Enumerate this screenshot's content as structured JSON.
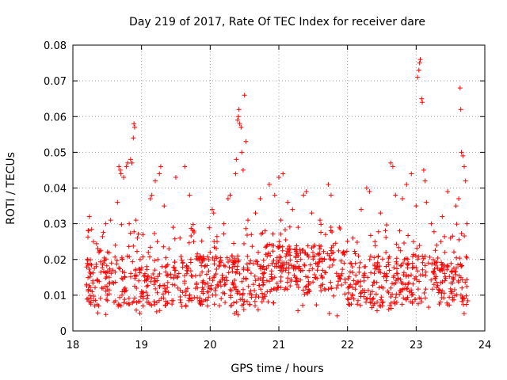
{
  "chart_data": {
    "type": "scatter",
    "title": "Day 219 of 2017, Rate Of TEC Index for receiver dare",
    "xlabel": "GPS time / hours",
    "ylabel": "ROTI / TECUs",
    "xlim": [
      18,
      24
    ],
    "ylim": [
      0,
      0.08
    ],
    "xticks": [
      18,
      19,
      20,
      21,
      22,
      23,
      24
    ],
    "xtick_labels": [
      "18",
      "19",
      "20",
      "21",
      "22",
      "23",
      "24"
    ],
    "yticks": [
      0,
      0.01,
      0.02,
      0.03,
      0.04,
      0.05,
      0.06,
      0.07,
      0.08
    ],
    "ytick_labels": [
      "0",
      "0.01",
      "0.02",
      "0.03",
      "0.04",
      "0.05",
      "0.06",
      "0.07",
      "0.08"
    ],
    "grid": true,
    "marker": "+",
    "series": [
      {
        "name": "ROTI",
        "color": "#ff0000",
        "points": [
          [
            18.2,
            0.013
          ],
          [
            18.21,
            0.02
          ],
          [
            18.22,
            0.009
          ],
          [
            18.23,
            0.028
          ],
          [
            18.24,
            0.032
          ],
          [
            18.26,
            0.016
          ],
          [
            18.28,
            0.011
          ],
          [
            18.3,
            0.025
          ],
          [
            18.32,
            0.007
          ],
          [
            18.34,
            0.018
          ],
          [
            18.36,
            0.014
          ],
          [
            18.38,
            0.022
          ],
          [
            18.42,
            0.012
          ],
          [
            18.45,
            0.019
          ],
          [
            18.48,
            0.03
          ],
          [
            18.5,
            0.01
          ],
          [
            18.53,
            0.015
          ],
          [
            18.55,
            0.031
          ],
          [
            18.58,
            0.017
          ],
          [
            18.6,
            0.008
          ],
          [
            18.62,
            0.024
          ],
          [
            18.65,
            0.036
          ],
          [
            18.67,
            0.046
          ],
          [
            18.69,
            0.045
          ],
          [
            18.7,
            0.044
          ],
          [
            18.72,
            0.02
          ],
          [
            18.74,
            0.043
          ],
          [
            18.76,
            0.012
          ],
          [
            18.78,
            0.046
          ],
          [
            18.8,
            0.047
          ],
          [
            18.82,
            0.03
          ],
          [
            18.84,
            0.048
          ],
          [
            18.86,
            0.047
          ],
          [
            18.88,
            0.054
          ],
          [
            18.89,
            0.058
          ],
          [
            18.9,
            0.057
          ],
          [
            18.92,
            0.031
          ],
          [
            18.94,
            0.026
          ],
          [
            18.96,
            0.014
          ],
          [
            18.98,
            0.02
          ],
          [
            19.0,
            0.011
          ],
          [
            19.02,
            0.027
          ],
          [
            19.05,
            0.016
          ],
          [
            19.08,
            0.009
          ],
          [
            19.1,
            0.022
          ],
          [
            19.13,
            0.037
          ],
          [
            19.15,
            0.038
          ],
          [
            19.18,
            0.013
          ],
          [
            19.2,
            0.042
          ],
          [
            19.23,
            0.025
          ],
          [
            19.26,
            0.044
          ],
          [
            19.28,
            0.046
          ],
          [
            19.3,
            0.018
          ],
          [
            19.33,
            0.035
          ],
          [
            19.36,
            0.011
          ],
          [
            19.4,
            0.023
          ],
          [
            19.43,
            0.015
          ],
          [
            19.46,
            0.029
          ],
          [
            19.5,
            0.043
          ],
          [
            19.53,
            0.012
          ],
          [
            19.56,
            0.026
          ],
          [
            19.6,
            0.019
          ],
          [
            19.63,
            0.046
          ],
          [
            19.66,
            0.016
          ],
          [
            19.7,
            0.038
          ],
          [
            19.73,
            0.009
          ],
          [
            19.76,
            0.025
          ],
          [
            19.8,
            0.013
          ],
          [
            19.84,
            0.02
          ],
          [
            19.88,
            0.011
          ],
          [
            19.92,
            0.018
          ],
          [
            19.96,
            0.007
          ],
          [
            20.0,
            0.022
          ],
          [
            20.03,
            0.034
          ],
          [
            20.05,
            0.033
          ],
          [
            20.08,
            0.012
          ],
          [
            20.1,
            0.025
          ],
          [
            20.13,
            0.018
          ],
          [
            20.16,
            0.009
          ],
          [
            20.2,
            0.03
          ],
          [
            20.23,
            0.015
          ],
          [
            20.26,
            0.037
          ],
          [
            20.29,
            0.038
          ],
          [
            20.32,
            0.021
          ],
          [
            20.35,
            0.012
          ],
          [
            20.37,
            0.044
          ],
          [
            20.38,
            0.048
          ],
          [
            20.4,
            0.059
          ],
          [
            20.41,
            0.06
          ],
          [
            20.42,
            0.062
          ],
          [
            20.43,
            0.058
          ],
          [
            20.45,
            0.057
          ],
          [
            20.46,
            0.05
          ],
          [
            20.48,
            0.045
          ],
          [
            20.5,
            0.066
          ],
          [
            20.52,
            0.053
          ],
          [
            20.55,
            0.031
          ],
          [
            20.58,
            0.019
          ],
          [
            20.6,
            0.027
          ],
          [
            20.63,
            0.013
          ],
          [
            20.66,
            0.033
          ],
          [
            20.7,
            0.022
          ],
          [
            20.73,
            0.037
          ],
          [
            20.76,
            0.016
          ],
          [
            20.8,
            0.028
          ],
          [
            20.83,
            0.011
          ],
          [
            20.86,
            0.041
          ],
          [
            20.9,
            0.024
          ],
          [
            20.94,
            0.038
          ],
          [
            20.97,
            0.018
          ],
          [
            21.0,
            0.043
          ],
          [
            21.03,
            0.031
          ],
          [
            21.06,
            0.044
          ],
          [
            21.1,
            0.012
          ],
          [
            21.13,
            0.036
          ],
          [
            21.16,
            0.022
          ],
          [
            21.2,
            0.034
          ],
          [
            21.24,
            0.015
          ],
          [
            21.28,
            0.029
          ],
          [
            21.32,
            0.02
          ],
          [
            21.36,
            0.038
          ],
          [
            21.4,
            0.039
          ],
          [
            21.44,
            0.011
          ],
          [
            21.48,
            0.033
          ],
          [
            21.52,
            0.024
          ],
          [
            21.56,
            0.017
          ],
          [
            21.6,
            0.031
          ],
          [
            21.64,
            0.013
          ],
          [
            21.68,
            0.027
          ],
          [
            21.72,
            0.041
          ],
          [
            21.76,
            0.038
          ],
          [
            21.8,
            0.02
          ],
          [
            21.84,
            0.012
          ],
          [
            21.88,
            0.029
          ],
          [
            21.92,
            0.016
          ],
          [
            21.96,
            0.022
          ],
          [
            22.0,
            0.009
          ],
          [
            22.04,
            0.019
          ],
          [
            22.08,
            0.026
          ],
          [
            22.12,
            0.013
          ],
          [
            22.16,
            0.021
          ],
          [
            22.2,
            0.034
          ],
          [
            22.24,
            0.015
          ],
          [
            22.28,
            0.04
          ],
          [
            22.32,
            0.039
          ],
          [
            22.36,
            0.011
          ],
          [
            22.4,
            0.025
          ],
          [
            22.44,
            0.018
          ],
          [
            22.48,
            0.033
          ],
          [
            22.52,
            0.012
          ],
          [
            22.56,
            0.022
          ],
          [
            22.6,
            0.006
          ],
          [
            22.63,
            0.047
          ],
          [
            22.66,
            0.046
          ],
          [
            22.7,
            0.038
          ],
          [
            22.73,
            0.016
          ],
          [
            22.76,
            0.028
          ],
          [
            22.8,
            0.037
          ],
          [
            22.83,
            0.02
          ],
          [
            22.86,
            0.041
          ],
          [
            22.9,
            0.011
          ],
          [
            22.93,
            0.044
          ],
          [
            22.96,
            0.025
          ],
          [
            23.0,
            0.035
          ],
          [
            23.02,
            0.071
          ],
          [
            23.04,
            0.073
          ],
          [
            23.05,
            0.075
          ],
          [
            23.06,
            0.076
          ],
          [
            23.08,
            0.065
          ],
          [
            23.09,
            0.064
          ],
          [
            23.11,
            0.045
          ],
          [
            23.13,
            0.042
          ],
          [
            23.15,
            0.036
          ],
          [
            23.18,
            0.019
          ],
          [
            23.22,
            0.03
          ],
          [
            23.26,
            0.013
          ],
          [
            23.3,
            0.024
          ],
          [
            23.34,
            0.017
          ],
          [
            23.38,
            0.032
          ],
          [
            23.42,
            0.022
          ],
          [
            23.46,
            0.039
          ],
          [
            23.5,
            0.026
          ],
          [
            23.54,
            0.015
          ],
          [
            23.58,
            0.035
          ],
          [
            23.62,
            0.037
          ],
          [
            23.64,
            0.068
          ],
          [
            23.65,
            0.062
          ],
          [
            23.66,
            0.05
          ],
          [
            23.68,
            0.049
          ],
          [
            23.7,
            0.046
          ],
          [
            23.72,
            0.042
          ],
          [
            23.74,
            0.03
          ]
        ],
        "background_band": {
          "x_range": [
            18.2,
            23.76
          ],
          "y_min": 0.004,
          "y_max": 0.03,
          "typical": 0.014,
          "count": 1100
        }
      }
    ]
  }
}
